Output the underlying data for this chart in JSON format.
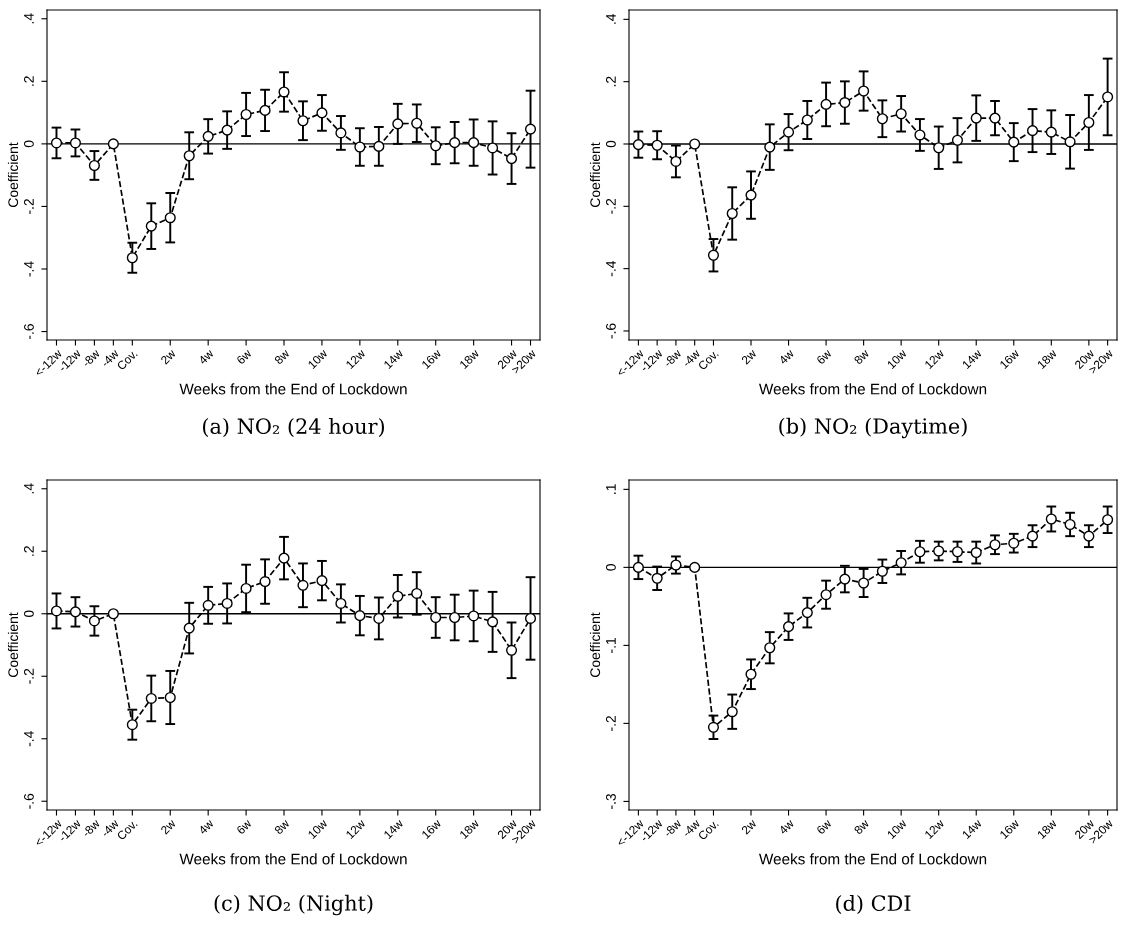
{
  "chart_data": [
    {
      "type": "line",
      "title": "(a) NO₂ (24 hour)",
      "xlabel": "Weeks from the End of Lockdown",
      "ylabel": "Coefficient",
      "marker": "circle",
      "line_style": "dashed",
      "categories": [
        "<-12w",
        "-12w",
        "-8w",
        "-4w",
        "Cov.",
        null,
        "2w",
        null,
        "4w",
        null,
        "6w",
        null,
        "8w",
        null,
        "10w",
        null,
        "12w",
        null,
        "14w",
        null,
        "16w",
        null,
        "18w",
        null,
        "20w",
        ">20w"
      ],
      "series": [
        {
          "color": "#000000",
          "values": [
            0.003,
            0.003,
            -0.069,
            0,
            -0.364,
            -0.263,
            -0.236,
            -0.038,
            0.024,
            0.044,
            0.094,
            0.107,
            0.166,
            0.074,
            0.099,
            0.035,
            -0.01,
            -0.008,
            0.064,
            0.066,
            -0.006,
            0.004,
            0.004,
            -0.013,
            -0.047,
            0.047
          ],
          "errors": [
            0.049,
            0.043,
            0.046,
            null,
            0.048,
            0.073,
            0.079,
            0.075,
            0.055,
            0.06,
            0.069,
            0.066,
            0.063,
            0.062,
            0.057,
            0.054,
            0.06,
            0.062,
            0.064,
            0.06,
            0.059,
            0.066,
            0.074,
            0.085,
            0.081,
            0.123
          ]
        }
      ],
      "ylim": [
        -0.627,
        0.428
      ],
      "yticks": [
        {
          "value": -0.6,
          "label": "-.6"
        },
        {
          "value": -0.4,
          "label": "-.4"
        },
        {
          "value": -0.2,
          "label": "-.2"
        },
        0,
        {
          "value": 0.2,
          "label": ".2"
        },
        {
          "value": 0.4,
          "label": ".4"
        }
      ],
      "ref_lines": [
        {
          "axis": "y",
          "value": 0,
          "color": "#000000",
          "line_style": "solid"
        }
      ]
    },
    {
      "type": "line",
      "title": "(b) NO₂ (Daytime)",
      "xlabel": "Weeks from the End of Lockdown",
      "ylabel": "Coefficient",
      "marker": "circle",
      "line_style": "dashed",
      "categories": [
        "<-12w",
        "-12w",
        "-8w",
        "-4w",
        "Cov.",
        null,
        "2w",
        null,
        "4w",
        null,
        "6w",
        null,
        "8w",
        null,
        "10w",
        null,
        "12w",
        null,
        "14w",
        null,
        "16w",
        null,
        "18w",
        null,
        "20w",
        ">20w"
      ],
      "series": [
        {
          "color": "#000000",
          "values": [
            -0.002,
            -0.004,
            -0.056,
            0,
            -0.357,
            -0.223,
            -0.164,
            -0.01,
            0.038,
            0.077,
            0.127,
            0.133,
            0.17,
            0.081,
            0.097,
            0.029,
            -0.012,
            0.012,
            0.083,
            0.083,
            0.006,
            0.043,
            0.038,
            0.007,
            0.069,
            0.151
          ],
          "errors": [
            0.042,
            0.045,
            0.051,
            null,
            0.052,
            0.084,
            0.076,
            0.073,
            0.058,
            0.061,
            0.07,
            0.068,
            0.063,
            0.059,
            0.057,
            0.051,
            0.068,
            0.071,
            0.073,
            0.055,
            0.061,
            0.069,
            0.07,
            0.086,
            0.088,
            0.123
          ]
        }
      ],
      "ylim": [
        -0.629,
        0.43
      ],
      "yticks": [
        {
          "value": -0.6,
          "label": "-.6"
        },
        {
          "value": -0.4,
          "label": "-.4"
        },
        {
          "value": -0.2,
          "label": "-.2"
        },
        0,
        {
          "value": 0.2,
          "label": ".2"
        },
        {
          "value": 0.4,
          "label": ".4"
        }
      ],
      "ref_lines": [
        {
          "axis": "y",
          "value": 0,
          "color": "#000000",
          "line_style": "solid"
        }
      ]
    },
    {
      "type": "line",
      "title": "(c) NO₂ (Night)",
      "xlabel": "Weeks from the End of Lockdown",
      "ylabel": "Coefficient",
      "marker": "circle",
      "line_style": "dashed",
      "categories": [
        "<-12w",
        "-12w",
        "-8w",
        "-4w",
        "Cov.",
        null,
        "2w",
        null,
        "4w",
        null,
        "6w",
        null,
        "8w",
        null,
        "10w",
        null,
        "12w",
        null,
        "14w",
        null,
        "16w",
        null,
        "18w",
        null,
        "20w",
        ">20w"
      ],
      "series": [
        {
          "color": "#000000",
          "values": [
            0.009,
            0.006,
            -0.023,
            0,
            -0.355,
            -0.271,
            -0.268,
            -0.046,
            0.027,
            0.033,
            0.081,
            0.103,
            0.178,
            0.091,
            0.106,
            0.033,
            -0.006,
            -0.015,
            0.056,
            0.065,
            -0.012,
            -0.012,
            -0.007,
            -0.026,
            -0.117,
            -0.015
          ],
          "errors": [
            0.056,
            0.047,
            0.047,
            null,
            0.048,
            0.073,
            0.085,
            0.081,
            0.059,
            0.064,
            0.076,
            0.071,
            0.068,
            0.07,
            0.063,
            0.061,
            0.063,
            0.067,
            0.068,
            0.068,
            0.065,
            0.073,
            0.081,
            0.096,
            0.089,
            0.132
          ]
        }
      ],
      "ylim": [
        -0.628,
        0.428
      ],
      "yticks": [
        {
          "value": -0.6,
          "label": "-.6"
        },
        {
          "value": -0.4,
          "label": "-.4"
        },
        {
          "value": -0.2,
          "label": "-.2"
        },
        0,
        {
          "value": 0.2,
          "label": ".2"
        },
        {
          "value": 0.4,
          "label": ".4"
        }
      ],
      "ref_lines": [
        {
          "axis": "y",
          "value": 0,
          "color": "#000000",
          "line_style": "solid"
        }
      ]
    },
    {
      "type": "line",
      "title": "(d) CDI",
      "xlabel": "Weeks from the End of Lockdown",
      "ylabel": "Coefficient",
      "marker": "circle",
      "line_style": "dashed",
      "categories": [
        "<-12w",
        "-12w",
        "-8w",
        "-4w",
        "Cov.",
        null,
        "2w",
        null,
        "4w",
        null,
        "6w",
        null,
        "8w",
        null,
        "10w",
        null,
        "12w",
        null,
        "14w",
        null,
        "16w",
        null,
        "18w",
        null,
        "20w",
        ">20w"
      ],
      "series": [
        {
          "color": "#000000",
          "values": [
            0,
            -0.014,
            0.003,
            0,
            -0.205,
            -0.185,
            -0.137,
            -0.103,
            -0.076,
            -0.058,
            -0.035,
            -0.015,
            -0.02,
            -0.005,
            0.006,
            0.02,
            0.021,
            0.02,
            0.019,
            0.029,
            0.031,
            0.04,
            0.062,
            0.055,
            0.04,
            0.061
          ],
          "errors": [
            0.015,
            0.015,
            0.011,
            null,
            0.015,
            0.022,
            0.019,
            0.02,
            0.017,
            0.019,
            0.018,
            0.017,
            0.018,
            0.015,
            0.015,
            0.014,
            0.012,
            0.013,
            0.014,
            0.012,
            0.012,
            0.014,
            0.016,
            0.015,
            0.014,
            0.017
          ]
        }
      ],
      "ylim": [
        -0.311,
        0.112
      ],
      "yticks": [
        {
          "value": -0.3,
          "label": "-.3"
        },
        {
          "value": -0.2,
          "label": "-.2"
        },
        {
          "value": -0.1,
          "label": "-.1"
        },
        0,
        {
          "value": 0.1,
          "label": ".1"
        }
      ],
      "ref_lines": [
        {
          "axis": "y",
          "value": 0,
          "color": "#000000",
          "line_style": "solid"
        }
      ]
    }
  ]
}
